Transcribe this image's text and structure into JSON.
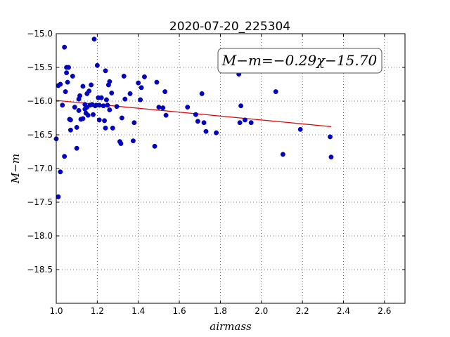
{
  "chart_data": {
    "type": "scatter",
    "title": "2020-07-20_225304",
    "xlabel": "airmass",
    "ylabel": "M−m",
    "xlim": [
      1.0,
      2.7
    ],
    "ylim": [
      -19.0,
      -15.0
    ],
    "y_inverted": true,
    "grid": true,
    "x_ticks": [
      "1.0",
      "1.2",
      "1.4",
      "1.6",
      "1.8",
      "2.0",
      "2.2",
      "2.4",
      "2.6"
    ],
    "x_tick_values": [
      1.0,
      1.2,
      1.4,
      1.6,
      1.8,
      2.0,
      2.2,
      2.4,
      2.6
    ],
    "y_ticks": [
      "−15.0",
      "−15.5",
      "−16.0",
      "−16.5",
      "−17.0",
      "−17.5",
      "−18.0",
      "−18.5"
    ],
    "y_tick_values": [
      -15.0,
      -15.5,
      -16.0,
      -16.5,
      -17.0,
      -17.5,
      -18.0,
      -18.5
    ],
    "annotation": "M−m=−0.29χ−15.70",
    "annotation_placement": "top-right",
    "colors": {
      "points": "#0000cc",
      "fit": "#e00000"
    },
    "fit_line": {
      "slope": -0.29,
      "intercept": -15.7,
      "x_range": [
        1.0,
        2.34
      ]
    },
    "points": [
      [
        1.0,
        -16.56
      ],
      [
        1.01,
        -17.42
      ],
      [
        1.01,
        -15.77
      ],
      [
        1.02,
        -17.05
      ],
      [
        1.02,
        -15.75
      ],
      [
        1.03,
        -16.06
      ],
      [
        1.04,
        -15.2
      ],
      [
        1.04,
        -16.82
      ],
      [
        1.045,
        -15.86
      ],
      [
        1.05,
        -15.5
      ],
      [
        1.05,
        -15.58
      ],
      [
        1.055,
        -15.72
      ],
      [
        1.06,
        -15.5
      ],
      [
        1.065,
        -16.27
      ],
      [
        1.07,
        -16.43
      ],
      [
        1.07,
        -16.28
      ],
      [
        1.08,
        -15.63
      ],
      [
        1.09,
        -16.09
      ],
      [
        1.1,
        -16.39
      ],
      [
        1.1,
        -16.7
      ],
      [
        1.11,
        -15.97
      ],
      [
        1.11,
        -16.14
      ],
      [
        1.115,
        -15.92
      ],
      [
        1.12,
        -16.27
      ],
      [
        1.13,
        -16.26
      ],
      [
        1.13,
        -15.78
      ],
      [
        1.14,
        -16.05
      ],
      [
        1.14,
        -16.12
      ],
      [
        1.145,
        -16.18
      ],
      [
        1.15,
        -15.89
      ],
      [
        1.15,
        -16.09
      ],
      [
        1.155,
        -16.21
      ],
      [
        1.16,
        -15.85
      ],
      [
        1.165,
        -16.06
      ],
      [
        1.17,
        -15.76
      ],
      [
        1.175,
        -16.05
      ],
      [
        1.18,
        -16.2
      ],
      [
        1.185,
        -15.08
      ],
      [
        1.19,
        -16.07
      ],
      [
        1.195,
        -16.06
      ],
      [
        1.2,
        -15.47
      ],
      [
        1.205,
        -15.95
      ],
      [
        1.21,
        -16.28
      ],
      [
        1.21,
        -16.06
      ],
      [
        1.22,
        -15.95
      ],
      [
        1.23,
        -16.07
      ],
      [
        1.235,
        -16.29
      ],
      [
        1.24,
        -15.55
      ],
      [
        1.24,
        -16.4
      ],
      [
        1.245,
        -15.98
      ],
      [
        1.25,
        -16.06
      ],
      [
        1.255,
        -15.76
      ],
      [
        1.26,
        -15.71
      ],
      [
        1.26,
        -16.13
      ],
      [
        1.27,
        -15.88
      ],
      [
        1.275,
        -16.4
      ],
      [
        1.295,
        -16.08
      ],
      [
        1.31,
        -16.6
      ],
      [
        1.315,
        -16.63
      ],
      [
        1.32,
        -16.25
      ],
      [
        1.33,
        -15.63
      ],
      [
        1.335,
        -15.97
      ],
      [
        1.36,
        -15.89
      ],
      [
        1.375,
        -16.59
      ],
      [
        1.38,
        -16.32
      ],
      [
        1.4,
        -15.73
      ],
      [
        1.41,
        -15.98
      ],
      [
        1.415,
        -15.8
      ],
      [
        1.43,
        -15.64
      ],
      [
        1.48,
        -16.67
      ],
      [
        1.49,
        -15.72
      ],
      [
        1.5,
        -16.09
      ],
      [
        1.52,
        -16.1
      ],
      [
        1.53,
        -15.86
      ],
      [
        1.535,
        -16.21
      ],
      [
        1.64,
        -16.09
      ],
      [
        1.68,
        -16.2
      ],
      [
        1.69,
        -16.3
      ],
      [
        1.71,
        -15.89
      ],
      [
        1.72,
        -16.32
      ],
      [
        1.73,
        -16.45
      ],
      [
        1.78,
        -16.47
      ],
      [
        1.89,
        -15.6
      ],
      [
        1.895,
        -16.32
      ],
      [
        1.9,
        -16.07
      ],
      [
        1.92,
        -16.28
      ],
      [
        1.95,
        -16.32
      ],
      [
        2.07,
        -15.86
      ],
      [
        2.105,
        -16.79
      ],
      [
        2.19,
        -16.42
      ],
      [
        2.335,
        -16.53
      ],
      [
        2.34,
        -16.83
      ]
    ]
  }
}
